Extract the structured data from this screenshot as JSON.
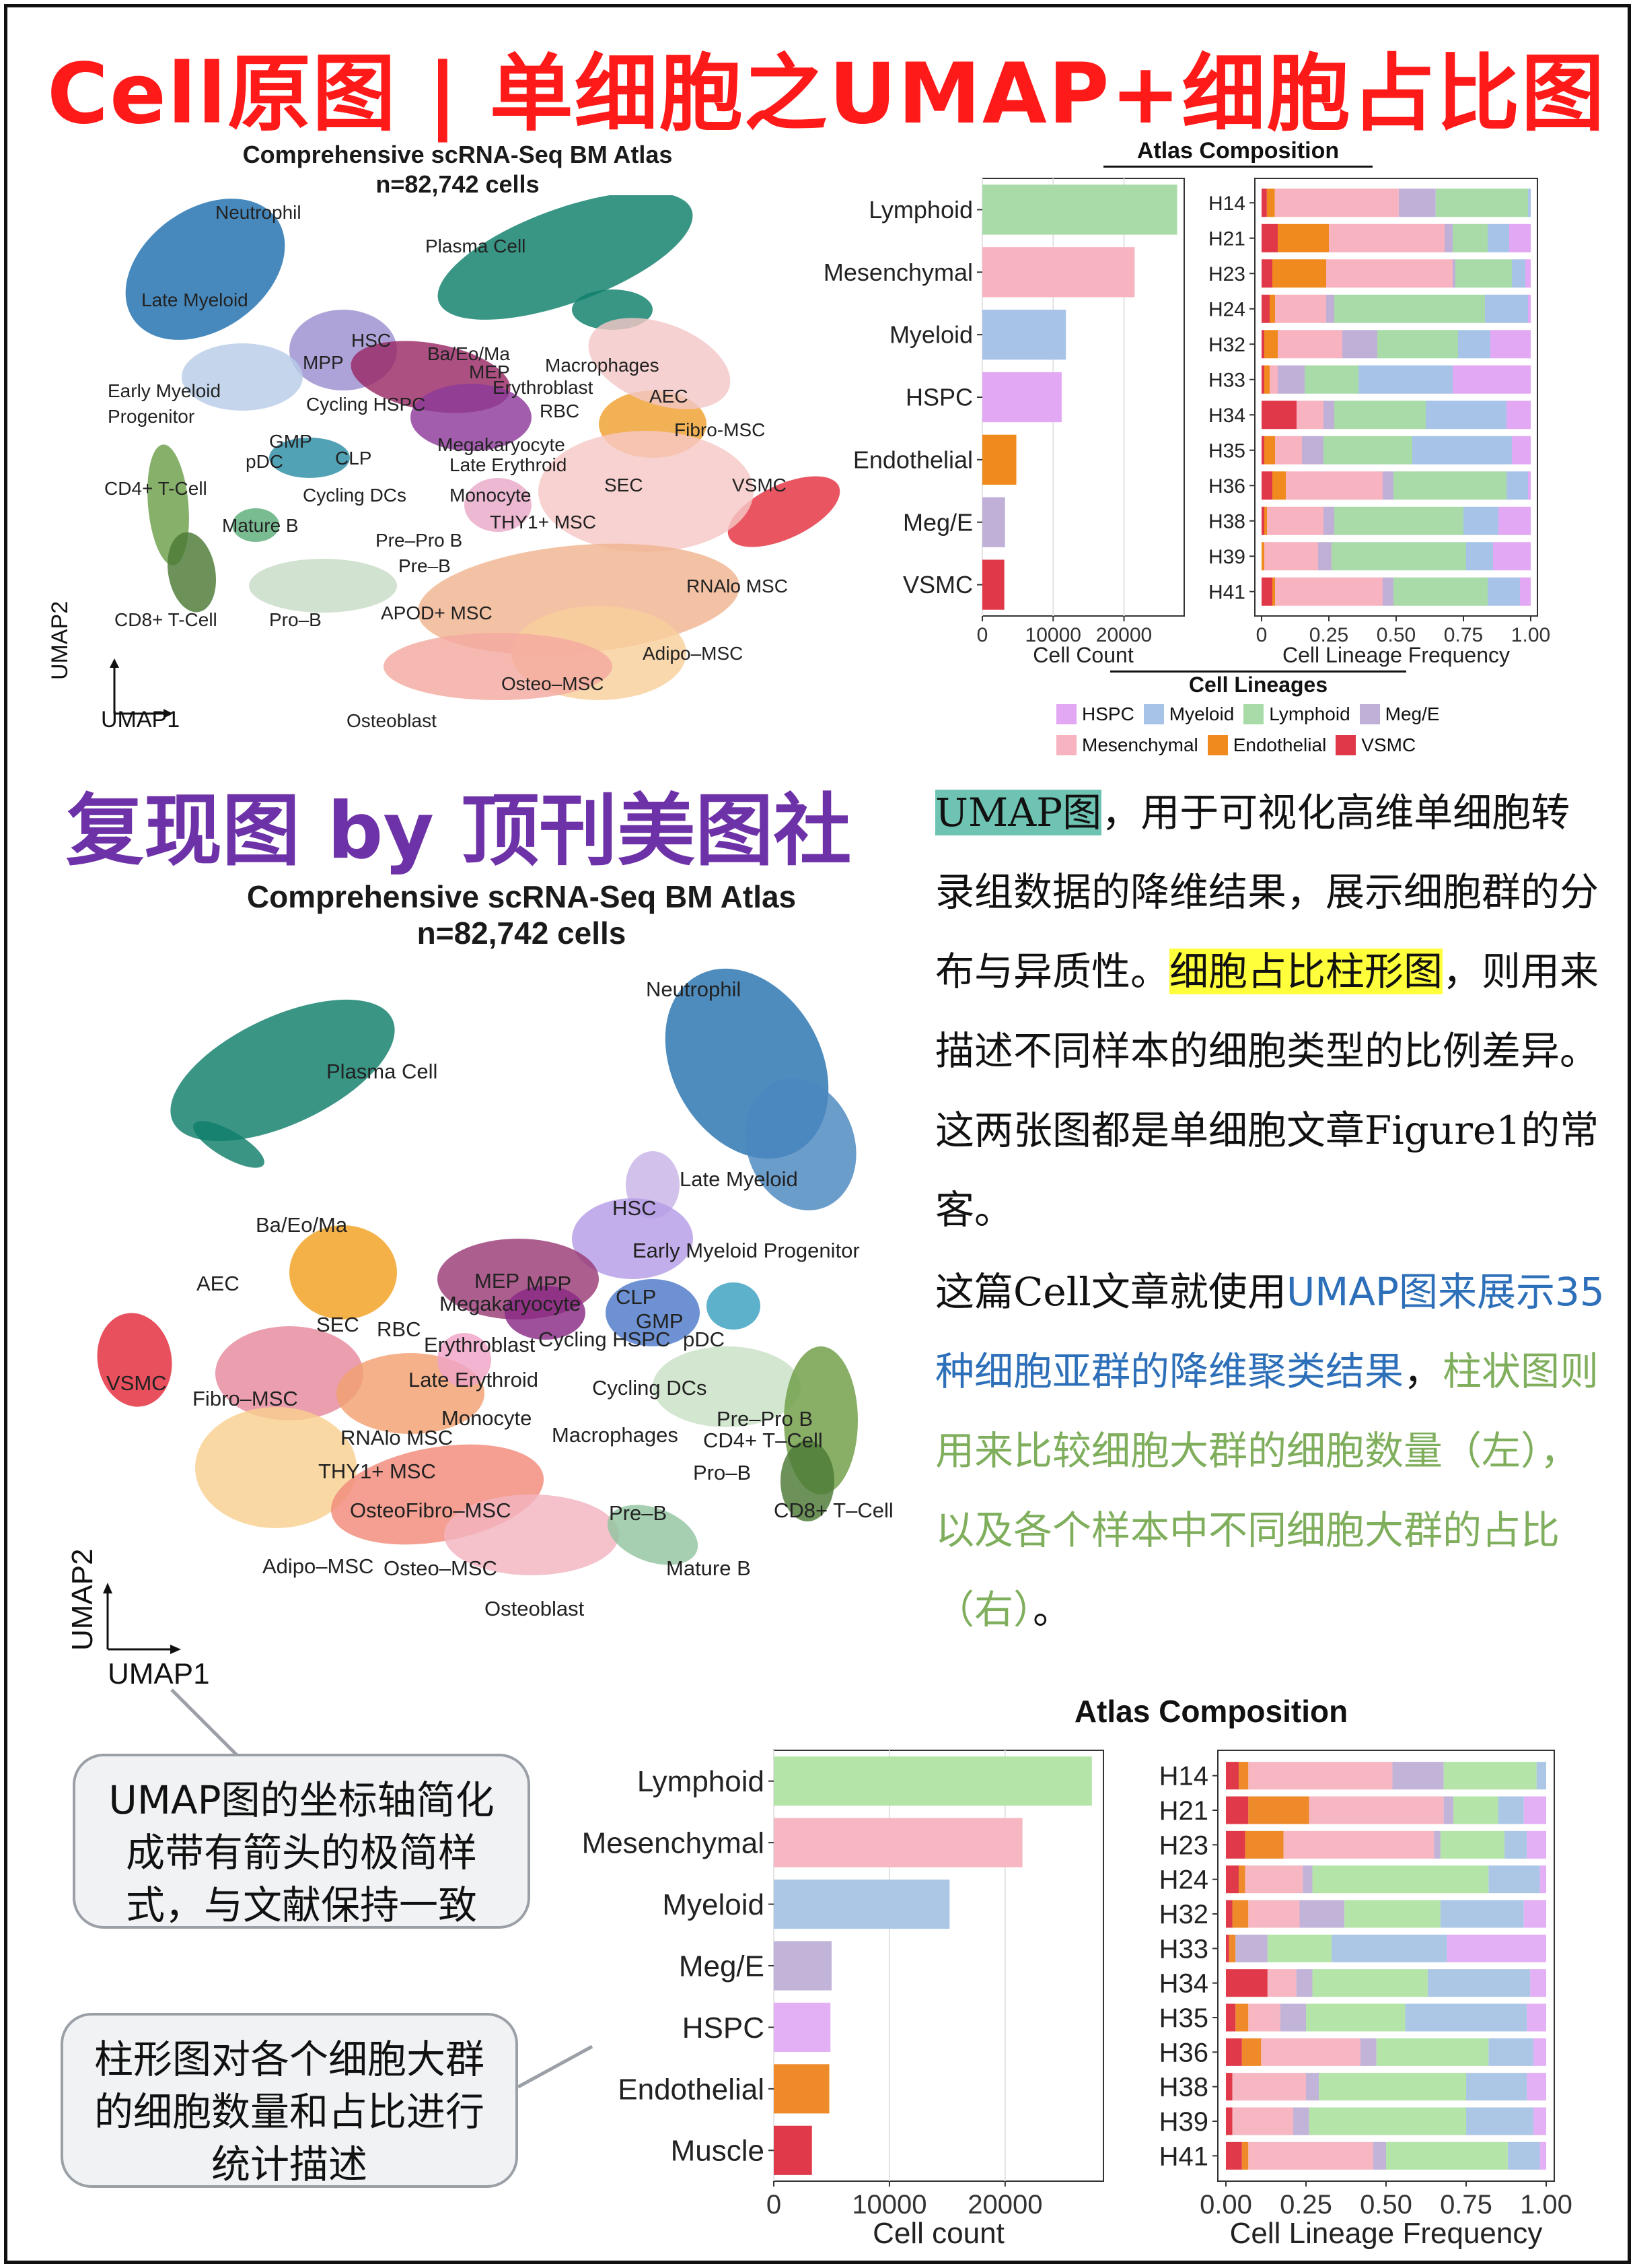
{
  "header": {
    "title": "Cell原图 | 单细胞之UMAP+细胞占比图",
    "repro_title": "复现图 by 顶刊美图社"
  },
  "original_figure": {
    "umap": {
      "title": "Comprehensive scRNA-Seq BM Atlas",
      "subtitle": "n=82,742 cells",
      "axis_x": "UMAP1",
      "axis_y": "UMAP2",
      "labels": [
        "Neutrophil",
        "Plasma Cell",
        "Late Myeloid",
        "HSC",
        "Ba/Eo/Ma",
        "MEP",
        "Macrophages",
        "MPP",
        "Erythroblast",
        "Early Myeloid Progenitor",
        "Cycling HSPC",
        "RBC",
        "AEC",
        "GMP",
        "Megakaryocyte",
        "Fibro-MSC",
        "pDC",
        "CLP",
        "Late Erythroid",
        "SEC",
        "VSMC",
        "CD4+ T-Cell",
        "Cycling DCs",
        "Monocyte",
        "Mature B",
        "THY1+ MSC",
        "Pre-Pro B",
        "Pre-B",
        "RNAlo MSC",
        "CD8+ T-Cell",
        "Pro-B",
        "APOD+ MSC",
        "Adipo-MSC",
        "Osteo-MSC",
        "Osteoblast"
      ]
    },
    "bar_chart": {
      "title": "Atlas Composition",
      "xlabel": "Cell Count",
      "ticks": [
        "0",
        "10000",
        "20000"
      ]
    },
    "stack_chart": {
      "xlabel": "Cell Lineage Frequency",
      "ticks": [
        "0",
        "0.25",
        "0.50",
        "0.75",
        "1.00"
      ]
    },
    "legend": {
      "title": "Cell Lineages",
      "items": [
        {
          "label": "HSPC",
          "color": "#e2a8f4"
        },
        {
          "label": "Myeloid",
          "color": "#a7c4e8"
        },
        {
          "label": "Lymphoid",
          "color": "#a9dba8"
        },
        {
          "label": "Meg/E",
          "color": "#c0b0d8"
        },
        {
          "label": "Mesenchymal",
          "color": "#f8b3c0"
        },
        {
          "label": "Endothelial",
          "color": "#f08a1e"
        },
        {
          "label": "VSMC",
          "color": "#e03848"
        }
      ]
    }
  },
  "reproduction": {
    "umap": {
      "title": "Comprehensive scRNA-Seq BM Atlas",
      "subtitle": "n=82,742 cells",
      "axis_x": "UMAP1",
      "axis_y": "UMAP2",
      "labels": [
        "Neutrophil",
        "Plasma Cell",
        "Late Myeloid",
        "HSC",
        "Ba/Eo/Ma",
        "Early Myeloid Progenitor",
        "AEC",
        "MEP",
        "MPP",
        "CLP",
        "Megakaryocyte",
        "SEC",
        "RBC",
        "GMP",
        "Erythroblast",
        "Cycling HSPC",
        "pDC",
        "Late Erythroid",
        "Cycling DCs",
        "VSMC",
        "Fibro-MSC",
        "Monocyte",
        "Pre-Pro B",
        "Macrophages",
        "CD4+ T-Cell",
        "RNAlo MSC",
        "THY1+ MSC",
        "Pro-B",
        "CD8+ T-Cell",
        "OsteoFibro-MSC",
        "Pre-B",
        "Adipo-MSC",
        "Osteo-MSC",
        "Mature B",
        "Osteoblast"
      ]
    },
    "bar_chart": {
      "title": "Atlas Composition",
      "xlabel": "Cell count",
      "ticks": [
        "0",
        "10000",
        "20000"
      ]
    },
    "stack_chart": {
      "xlabel": "Cell Lineage Frequency",
      "ticks": [
        "0.00",
        "0.25",
        "0.50",
        "0.75",
        "1.00"
      ]
    }
  },
  "description": {
    "p1_a": "UMAP图",
    "p1_b": "，用于可视化高维单细胞转录组数据的降维结果，展示细胞群的分布与异质性。",
    "p1_c": "细胞占比柱形图",
    "p1_d": "，则用来描述不同样本的细胞类型的比例差异。这两张图都是单细胞文章",
    "p1_e": "Figure1",
    "p1_f": "的常客。",
    "p2_a": "这篇",
    "p2_b": "Cell",
    "p2_c": "文章就使用",
    "p2_d": "UMAP图来展示35种细胞亚群的降维聚类结果",
    "p2_e": "，",
    "p2_f": "柱状图则用来比较细胞大群的细胞数量（左），以及各个样本中不同细胞大群的占比（右）",
    "p2_g": "。"
  },
  "callouts": {
    "umap_note": "UMAP图的坐标轴简化成带有箭头的极简样式，与文献保持一致",
    "bar_note": "柱形图对各个细胞大群的细胞数量和占比进行统计描述"
  },
  "chart_data": [
    {
      "type": "bar",
      "title": "Atlas Composition",
      "xlabel": "Cell Count",
      "orientation": "horizontal",
      "categories": [
        "Lymphoid",
        "Mesenchymal",
        "Myeloid",
        "HSPC",
        "Endothelial",
        "Meg/E",
        "VSMC"
      ],
      "values": [
        27500,
        21500,
        11800,
        11200,
        4800,
        3200,
        3100
      ],
      "colors": [
        "#a9dba8",
        "#f8b3c0",
        "#a7c4e8",
        "#e2a8f4",
        "#f08a1e",
        "#c0b0d8",
        "#e03848"
      ],
      "xlim": [
        0,
        28500
      ]
    },
    {
      "type": "bar",
      "stacked": true,
      "xlabel": "Cell Lineage Frequency",
      "categories": [
        "H14",
        "H21",
        "H23",
        "H24",
        "H32",
        "H33",
        "H34",
        "H35",
        "H36",
        "H38",
        "H39",
        "H41"
      ],
      "series_order": [
        "VSMC",
        "Endothelial",
        "Mesenchymal",
        "Meg/E",
        "Lymphoid",
        "Myeloid",
        "HSPC"
      ],
      "colors": {
        "VSMC": "#e03848",
        "Endothelial": "#f08a1e",
        "Mesenchymal": "#f8b3c0",
        "Meg/E": "#c0b0d8",
        "Lymphoid": "#a9dba8",
        "Myeloid": "#a7c4e8",
        "HSPC": "#e2a8f4"
      },
      "rows": [
        [
          0.02,
          0.03,
          0.47,
          0.14,
          0.35,
          0.01,
          0.0
        ],
        [
          0.06,
          0.19,
          0.43,
          0.03,
          0.13,
          0.08,
          0.08
        ],
        [
          0.04,
          0.2,
          0.47,
          0.01,
          0.21,
          0.05,
          0.02
        ],
        [
          0.03,
          0.02,
          0.19,
          0.03,
          0.56,
          0.16,
          0.01
        ],
        [
          0.01,
          0.05,
          0.24,
          0.13,
          0.3,
          0.12,
          0.15
        ],
        [
          0.01,
          0.02,
          0.03,
          0.1,
          0.2,
          0.35,
          0.29
        ],
        [
          0.13,
          0.0,
          0.1,
          0.04,
          0.34,
          0.3,
          0.09
        ],
        [
          0.01,
          0.04,
          0.1,
          0.08,
          0.33,
          0.37,
          0.07
        ],
        [
          0.04,
          0.05,
          0.36,
          0.04,
          0.42,
          0.08,
          0.01
        ],
        [
          0.01,
          0.01,
          0.21,
          0.04,
          0.48,
          0.13,
          0.12
        ],
        [
          0.0,
          0.01,
          0.2,
          0.05,
          0.5,
          0.1,
          0.14
        ],
        [
          0.04,
          0.01,
          0.4,
          0.04,
          0.35,
          0.12,
          0.04
        ]
      ]
    },
    {
      "type": "bar",
      "title": "Atlas Composition",
      "xlabel": "Cell count",
      "orientation": "horizontal",
      "categories": [
        "Lymphoid",
        "Mesenchymal",
        "Myeloid",
        "Meg/E",
        "HSPC",
        "Endothelial",
        "Muscle"
      ],
      "values": [
        27500,
        21500,
        15200,
        5000,
        4900,
        4800,
        3300
      ],
      "colors": [
        "#b5e4a9",
        "#f6b7c2",
        "#acc7e6",
        "#c2b3d9",
        "#e3b0f5",
        "#ee8a2a",
        "#e03a4a"
      ],
      "xlim": [
        0,
        28500
      ]
    },
    {
      "type": "bar",
      "stacked": true,
      "xlabel": "Cell Lineage Frequency",
      "categories": [
        "H14",
        "H21",
        "H23",
        "H24",
        "H32",
        "H33",
        "H34",
        "H35",
        "H36",
        "H38",
        "H39",
        "H41"
      ],
      "series_order": [
        "VSMC",
        "Endothelial",
        "Mesenchymal",
        "Meg/E",
        "Lymphoid",
        "Myeloid",
        "HSPC"
      ],
      "colors": {
        "VSMC": "#e03a4a",
        "Endothelial": "#ee8a2a",
        "Mesenchymal": "#f6b7c2",
        "Meg/E": "#c2b3d9",
        "Lymphoid": "#b5e4a9",
        "Myeloid": "#acc7e6",
        "HSPC": "#e3b0f5"
      },
      "rows": [
        [
          0.04,
          0.03,
          0.45,
          0.16,
          0.29,
          0.03,
          0.0
        ],
        [
          0.07,
          0.19,
          0.42,
          0.03,
          0.14,
          0.08,
          0.07
        ],
        [
          0.06,
          0.12,
          0.47,
          0.02,
          0.2,
          0.07,
          0.06
        ],
        [
          0.04,
          0.02,
          0.18,
          0.03,
          0.55,
          0.16,
          0.02
        ],
        [
          0.02,
          0.05,
          0.16,
          0.14,
          0.3,
          0.26,
          0.07
        ],
        [
          0.01,
          0.02,
          0.0,
          0.1,
          0.2,
          0.36,
          0.31
        ],
        [
          0.13,
          0.0,
          0.09,
          0.05,
          0.36,
          0.32,
          0.05
        ],
        [
          0.03,
          0.04,
          0.1,
          0.08,
          0.31,
          0.38,
          0.06
        ],
        [
          0.05,
          0.06,
          0.31,
          0.05,
          0.35,
          0.14,
          0.04
        ],
        [
          0.02,
          0.0,
          0.23,
          0.04,
          0.46,
          0.19,
          0.06
        ],
        [
          0.02,
          0.0,
          0.19,
          0.05,
          0.49,
          0.21,
          0.04
        ],
        [
          0.05,
          0.02,
          0.39,
          0.04,
          0.38,
          0.1,
          0.02
        ]
      ]
    }
  ]
}
